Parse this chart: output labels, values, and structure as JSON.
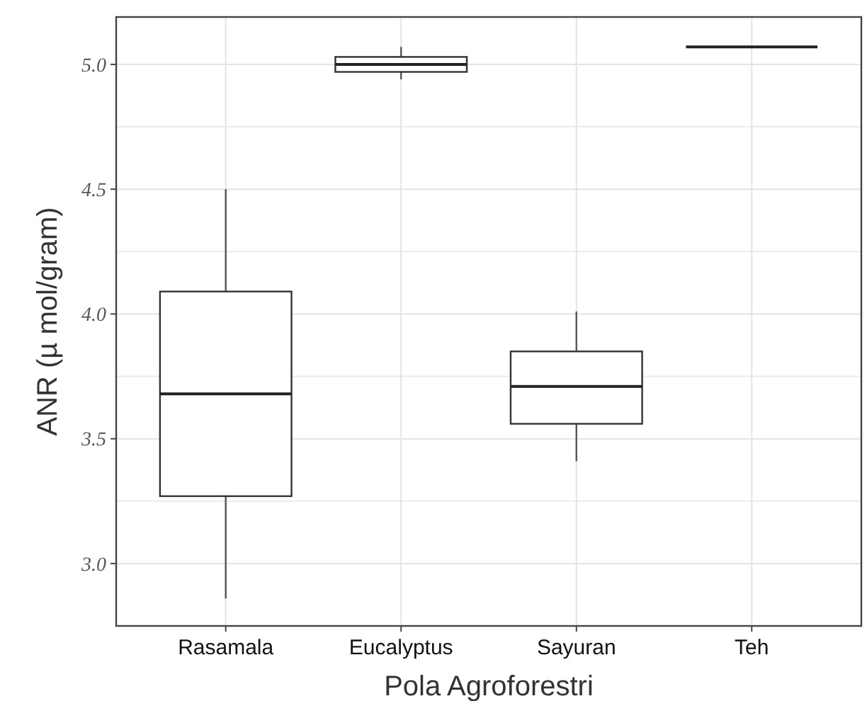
{
  "chart_data": {
    "type": "box",
    "xlabel": "Pola Agroforestri",
    "ylabel": "ANR (µ mol/gram)",
    "categories": [
      "Rasamala",
      "Eucalyptus",
      "Sayuran",
      "Teh"
    ],
    "boxes": [
      {
        "low": 2.86,
        "q1": 3.27,
        "median": 3.68,
        "q3": 4.09,
        "high": 4.5
      },
      {
        "low": 4.94,
        "q1": 4.97,
        "median": 5.0,
        "q3": 5.03,
        "high": 5.07
      },
      {
        "low": 3.41,
        "q1": 3.56,
        "median": 3.71,
        "q3": 3.85,
        "high": 4.01
      },
      {
        "low": 5.07,
        "q1": 5.07,
        "median": 5.07,
        "q3": 5.07,
        "high": 5.07
      }
    ],
    "ylim": [
      2.75,
      5.19
    ],
    "yticks": [
      {
        "value": 3,
        "label": "3.0"
      },
      3.5,
      {
        "value": 4,
        "label": "4.0"
      },
      4.5,
      {
        "value": 5,
        "label": "5.0"
      }
    ],
    "grid": true
  }
}
